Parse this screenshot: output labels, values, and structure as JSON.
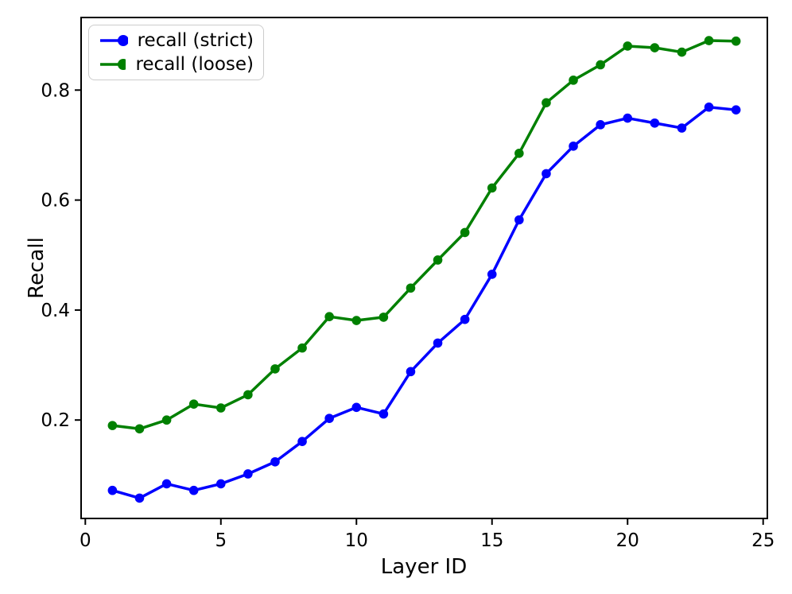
{
  "figure": {
    "background_color": "#ffffff",
    "axis_color": "#000000"
  },
  "chart_data": {
    "type": "line",
    "title": "",
    "xlabel": "Layer ID",
    "ylabel": "Recall",
    "x": [
      1,
      2,
      3,
      4,
      5,
      6,
      7,
      8,
      9,
      10,
      11,
      12,
      13,
      14,
      15,
      16,
      17,
      18,
      19,
      20,
      21,
      22,
      23,
      24
    ],
    "series": [
      {
        "name": "recall (strict)",
        "color": "#0000ff",
        "values": [
          0.072,
          0.058,
          0.084,
          0.072,
          0.084,
          0.102,
          0.124,
          0.161,
          0.203,
          0.223,
          0.211,
          0.288,
          0.34,
          0.383,
          0.465,
          0.564,
          0.648,
          0.698,
          0.737,
          0.749,
          0.74,
          0.731,
          0.769,
          0.764
        ]
      },
      {
        "name": "recall (loose)",
        "color": "#008000",
        "values": [
          0.19,
          0.184,
          0.2,
          0.229,
          0.222,
          0.246,
          0.293,
          0.331,
          0.388,
          0.381,
          0.387,
          0.44,
          0.491,
          0.541,
          0.622,
          0.685,
          0.777,
          0.818,
          0.846,
          0.88,
          0.877,
          0.869,
          0.89,
          0.889
        ]
      }
    ],
    "xticks": [
      0,
      5,
      10,
      15,
      20,
      25
    ],
    "yticks": [
      0.2,
      0.4,
      0.6,
      0.8
    ],
    "xlim": [
      -0.155,
      25.155
    ],
    "ylim": [
      0.021,
      0.932
    ],
    "grid": false,
    "legend": {
      "position": "upper-left",
      "entries": [
        "recall (strict)",
        "recall (loose)"
      ]
    }
  }
}
